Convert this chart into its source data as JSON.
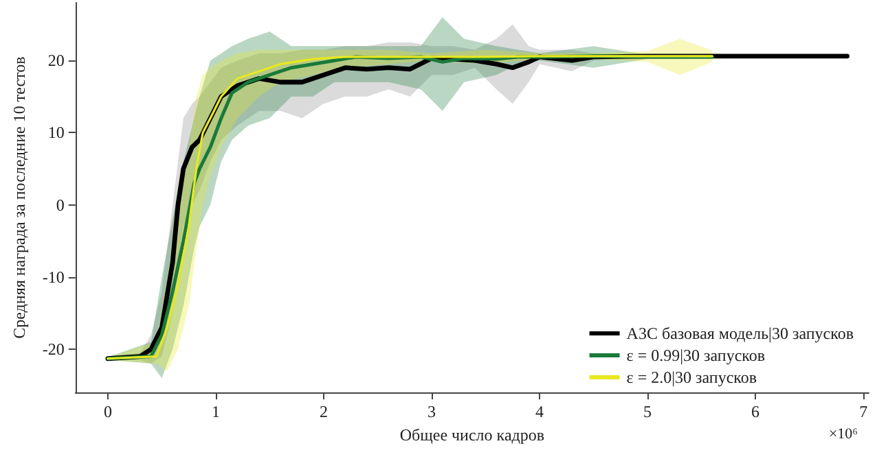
{
  "chart_data": {
    "type": "line",
    "xlabel": "Общее число кадров",
    "ylabel": "Средняя награда за последние 10 тестов",
    "annotations": [
      "×10⁶"
    ],
    "xlim": [
      -0.3,
      7.05
    ],
    "xticks": [
      0,
      1,
      2,
      3,
      4,
      5,
      6,
      7
    ],
    "ylim": [
      -26,
      28
    ],
    "yticks": [
      -20,
      -10,
      0,
      10,
      20
    ],
    "grid": false,
    "legend": "bottom right",
    "marker": "none",
    "line_style": "solid",
    "series": [
      {
        "name": "A3C базовая модель|30 запусков",
        "color": "#000000",
        "x": [
          0,
          0.3,
          0.4,
          0.5,
          0.6,
          0.65,
          0.7,
          0.78,
          0.85,
          0.95,
          1.05,
          1.2,
          1.4,
          1.6,
          1.8,
          2.0,
          2.2,
          2.4,
          2.6,
          2.8,
          3.0,
          3.2,
          3.4,
          3.6,
          3.75,
          3.9,
          4.0,
          4.3,
          4.5,
          5,
          6,
          6.85
        ],
        "values": [
          -21.3,
          -21,
          -20,
          -17,
          -8,
          0,
          5,
          8,
          9,
          12,
          15,
          16.5,
          17.5,
          17,
          17,
          18,
          19,
          18.8,
          19,
          18.8,
          20.3,
          20.2,
          20,
          19.5,
          19,
          19.8,
          20.5,
          20,
          20.5,
          20.6,
          20.6,
          20.6
        ],
        "lower": [
          -21.5,
          -21.5,
          -22,
          -21,
          -15,
          -8,
          -3,
          0,
          2,
          6,
          9,
          11,
          13,
          13,
          12,
          14,
          15,
          15,
          16,
          15,
          18,
          18,
          19,
          16,
          14,
          17,
          19.5,
          18.5,
          20,
          20.5,
          20.6,
          20.6
        ],
        "upper": [
          -21.1,
          -20.5,
          -18,
          -12,
          0,
          6,
          12,
          14,
          15,
          17,
          19,
          20,
          21,
          21,
          21.5,
          21.5,
          22,
          22,
          22.5,
          22.5,
          22,
          22,
          21.5,
          23,
          25,
          22,
          21.5,
          21.5,
          21,
          20.7,
          20.6,
          20.6
        ]
      },
      {
        "name": "ε = 0.99|30 запусков",
        "color": "#1a7a3a",
        "x": [
          0,
          0.4,
          0.5,
          0.6,
          0.7,
          0.8,
          0.85,
          0.95,
          1.05,
          1.15,
          1.3,
          1.5,
          1.7,
          1.9,
          2.1,
          2.3,
          2.6,
          2.9,
          3.1,
          3.3,
          3.6,
          3.8,
          4,
          4.5,
          5,
          5.6
        ],
        "values": [
          -21.3,
          -21,
          -18,
          -12,
          -5,
          3,
          5,
          8,
          12,
          15.5,
          17,
          18,
          19,
          19.5,
          20,
          20.5,
          20.3,
          20.5,
          19.8,
          20.3,
          20.2,
          20.5,
          20.5,
          20.6,
          20.5,
          20.5
        ],
        "lower": [
          -21.5,
          -22,
          -24,
          -20,
          -14,
          -6,
          -3,
          0,
          6,
          9,
          11,
          12,
          15,
          15,
          17,
          17,
          17,
          16,
          13,
          17,
          18,
          19.5,
          20,
          19,
          20.2,
          20.3
        ],
        "upper": [
          -21.1,
          -19,
          -10,
          -2,
          6,
          12,
          15,
          20,
          21,
          22,
          23,
          24,
          22,
          22,
          22,
          22,
          22,
          22,
          26,
          23,
          22,
          21.5,
          21,
          22,
          20.8,
          20.7
        ]
      },
      {
        "name": "ε = 2.0|30 запусков",
        "color": "#e8e820",
        "x": [
          0,
          0.45,
          0.55,
          0.65,
          0.75,
          0.82,
          0.88,
          0.95,
          1.05,
          1.2,
          1.4,
          1.6,
          1.9,
          2.2,
          2.6,
          3.0,
          3.5,
          4,
          4.5,
          5,
          5.3,
          5.6
        ],
        "values": [
          -21.3,
          -21,
          -17,
          -11,
          -3,
          5,
          10,
          12,
          15,
          17.5,
          18.5,
          19.5,
          20.2,
          20.5,
          20.5,
          20.5,
          20.5,
          20.6,
          20.6,
          20.6,
          20.6,
          20.6
        ],
        "lower": [
          -21.5,
          -22,
          -23,
          -20,
          -14,
          -6,
          0,
          4,
          8,
          12,
          15,
          17,
          18,
          19,
          19.5,
          20,
          19.5,
          20.2,
          20.2,
          19.8,
          18,
          19.8
        ],
        "upper": [
          -21.1,
          -19,
          -10,
          -2,
          8,
          15,
          18,
          19,
          20,
          21,
          21.5,
          21.5,
          21.5,
          21.5,
          21.5,
          21,
          21.5,
          21,
          21,
          21.3,
          23,
          21.4
        ]
      }
    ]
  }
}
